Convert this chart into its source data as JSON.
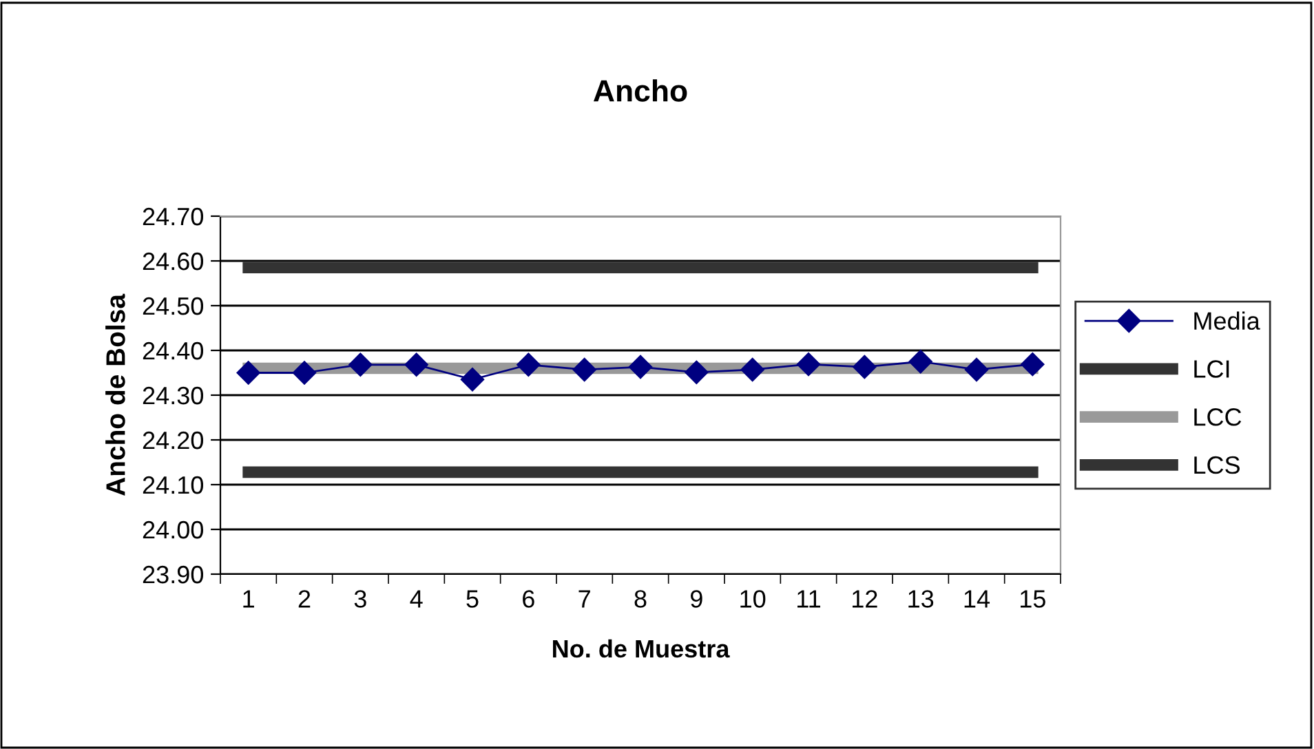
{
  "chart_data": {
    "type": "line",
    "title": "Ancho",
    "xlabel": "No. de Muestra",
    "ylabel": "Ancho de Bolsa",
    "categories": [
      "1",
      "2",
      "3",
      "4",
      "5",
      "6",
      "7",
      "8",
      "9",
      "10",
      "11",
      "12",
      "13",
      "14",
      "15"
    ],
    "ylim": [
      23.9,
      24.7
    ],
    "yticks": [
      {
        "value": 23.9,
        "label": "23.90"
      },
      {
        "value": 24.0,
        "label": "24.00"
      },
      {
        "value": 24.1,
        "label": "24.10"
      },
      {
        "value": 24.2,
        "label": "24.20"
      },
      {
        "value": 24.3,
        "label": "24.30"
      },
      {
        "value": 24.4,
        "label": "24.40"
      },
      {
        "value": 24.5,
        "label": "24.50"
      },
      {
        "value": 24.6,
        "label": "24.60"
      },
      {
        "value": 24.7,
        "label": "24.70"
      }
    ],
    "grid": "y",
    "legend": "right",
    "series": [
      {
        "name": "Media",
        "color": "#000080",
        "marker": "diamond",
        "values": [
          24.35,
          24.35,
          24.368,
          24.368,
          24.335,
          24.368,
          24.357,
          24.363,
          24.351,
          24.357,
          24.369,
          24.363,
          24.375,
          24.357,
          24.369
        ]
      },
      {
        "name": "LCI",
        "color": "#333333",
        "marker": "none",
        "values": [
          24.585,
          24.585,
          24.585,
          24.585,
          24.585,
          24.585,
          24.585,
          24.585,
          24.585,
          24.585,
          24.585,
          24.585,
          24.585,
          24.585,
          24.585
        ]
      },
      {
        "name": "LCC",
        "color": "#999999",
        "marker": "none",
        "values": [
          24.36,
          24.36,
          24.36,
          24.36,
          24.36,
          24.36,
          24.36,
          24.36,
          24.36,
          24.36,
          24.36,
          24.36,
          24.36,
          24.36,
          24.36
        ]
      },
      {
        "name": "LCS",
        "color": "#333333",
        "marker": "none",
        "values": [
          24.128,
          24.128,
          24.128,
          24.128,
          24.128,
          24.128,
          24.128,
          24.128,
          24.128,
          24.128,
          24.128,
          24.128,
          24.128,
          24.128,
          24.128
        ]
      }
    ]
  }
}
